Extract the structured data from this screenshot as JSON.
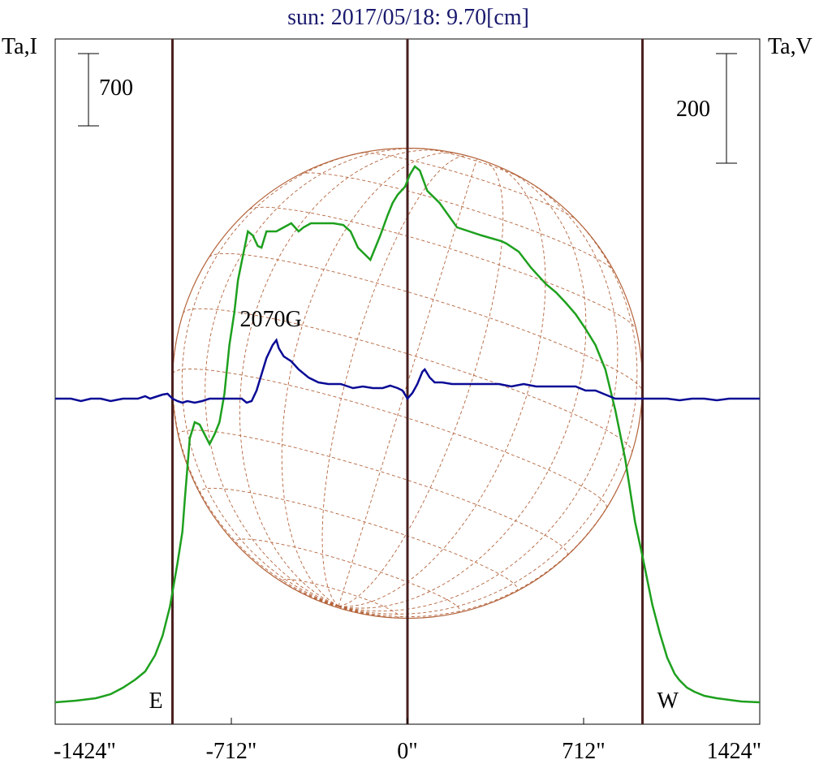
{
  "chart_data": {
    "type": "line",
    "title": "sun: 2017/05/18: 9.70[cm]",
    "left_axis_label": "Ta,I",
    "right_axis_label": "Ta,V",
    "left_scale_bar_label": "700",
    "right_scale_bar_label": "200",
    "xlim": [
      -1424,
      1424
    ],
    "x_ticks": [
      -1424,
      -712,
      0,
      712,
      1424
    ],
    "x_tick_labels": [
      "-1424\"",
      "-712\"",
      "0\"",
      "712\"",
      "1424\""
    ],
    "limb_markers": [
      {
        "label": "E",
        "x": -950
      },
      {
        "label": "",
        "x": 0
      },
      {
        "label": "W",
        "x": 950
      }
    ],
    "annotations": [
      {
        "text": "2070G",
        "x": -530
      }
    ],
    "solar_disk": {
      "radius": 950,
      "grid": "heliographic",
      "color": "#b4643c"
    },
    "colors": {
      "intensity": "#1ea01e",
      "polarization": "#0a0a96",
      "limb_lines": "#4a1f1f",
      "disk": "#b4643c"
    },
    "series": [
      {
        "key": "intensity",
        "color": "#1ea01e",
        "x": [
          -1424,
          -1340,
          -1260,
          -1200,
          -1150,
          -1100,
          -1060,
          -1020,
          -990,
          -960,
          -930,
          -910,
          -900,
          -880,
          -860,
          -840,
          -820,
          -800,
          -780,
          -760,
          -740,
          -720,
          -700,
          -685,
          -665,
          -645,
          -625,
          -605,
          -590,
          -570,
          -545,
          -530,
          -500,
          -470,
          -440,
          -420,
          -390,
          -350,
          -300,
          -260,
          -230,
          -200,
          -150,
          -110,
          -80,
          -60,
          -40,
          -10,
          10,
          30,
          50,
          80,
          130,
          200,
          300,
          380,
          400,
          450,
          500,
          560,
          600,
          640,
          680,
          720,
          760,
          800,
          840,
          880,
          920,
          950,
          970,
          990,
          1020,
          1050,
          1080,
          1100,
          1130,
          1160,
          1200,
          1250,
          1300,
          1350,
          1424
        ],
        "y": [
          0,
          2,
          5,
          10,
          18,
          28,
          38,
          58,
          82,
          118,
          171,
          210,
          250,
          325,
          345,
          342,
          330,
          318,
          330,
          345,
          380,
          440,
          480,
          520,
          550,
          580,
          575,
          562,
          560,
          580,
          580,
          580,
          585,
          590,
          580,
          585,
          590,
          590,
          590,
          588,
          580,
          560,
          545,
          575,
          600,
          615,
          625,
          635,
          650,
          660,
          655,
          630,
          615,
          585,
          575,
          568,
          565,
          555,
          535,
          515,
          505,
          492,
          478,
          460,
          440,
          410,
          360,
          300,
          222,
          180,
          150,
          120,
          85,
          55,
          35,
          27,
          18,
          13,
          8,
          5,
          3,
          1,
          0
        ]
      },
      {
        "key": "polarization",
        "color": "#0a0a96",
        "x": [
          -1424,
          -1360,
          -1320,
          -1280,
          -1240,
          -1200,
          -1150,
          -1120,
          -1090,
          -1060,
          -1040,
          -1010,
          -990,
          -970,
          -950,
          -930,
          -910,
          -890,
          -860,
          -830,
          -800,
          -770,
          -740,
          -720,
          -700,
          -670,
          -650,
          -630,
          -610,
          -590,
          -570,
          -545,
          -530,
          -520,
          -500,
          -470,
          -440,
          -400,
          -360,
          -320,
          -270,
          -220,
          -180,
          -140,
          -100,
          -70,
          -40,
          -20,
          0,
          20,
          40,
          60,
          70,
          90,
          110,
          140,
          180,
          230,
          300,
          370,
          420,
          470,
          520,
          580,
          640,
          680,
          720,
          760,
          800,
          840,
          880,
          920,
          950,
          1000,
          1050,
          1100,
          1150,
          1200,
          1250,
          1300,
          1350,
          1400,
          1424
        ],
        "y": [
          0,
          0,
          -3,
          0,
          0,
          -3,
          0,
          0,
          0,
          3,
          0,
          3,
          5,
          6,
          0,
          -3,
          -5,
          -3,
          -5,
          -3,
          0,
          0,
          0,
          0,
          0,
          0,
          -5,
          -3,
          10,
          30,
          50,
          66,
          72,
          62,
          52,
          46,
          36,
          26,
          20,
          18,
          18,
          13,
          15,
          13,
          13,
          16,
          13,
          10,
          0,
          7,
          18,
          33,
          36,
          26,
          20,
          20,
          18,
          18,
          18,
          18,
          15,
          18,
          15,
          15,
          15,
          15,
          10,
          10,
          5,
          0,
          0,
          0,
          0,
          0,
          0,
          -2,
          0,
          0,
          -2,
          0,
          0,
          0,
          0
        ]
      }
    ],
    "grid": false
  }
}
